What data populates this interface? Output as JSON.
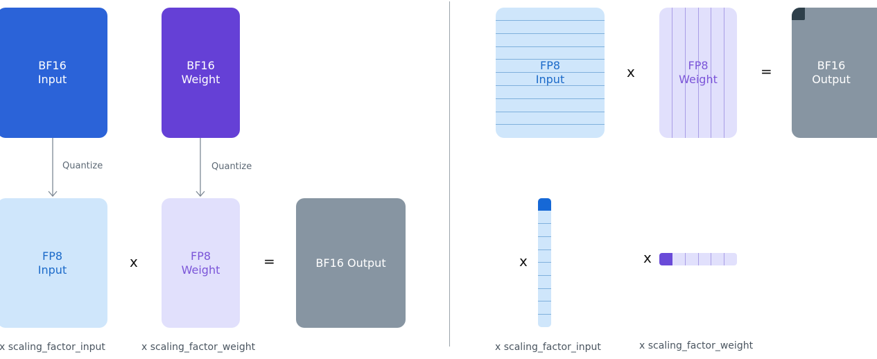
{
  "left": {
    "bf16_input": "BF16\nInput",
    "bf16_weight": "BF16\nWeight",
    "quantize_input": "Quantize",
    "quantize_weight": "Quantize",
    "fp8_input": "FP8\nInput",
    "fp8_weight": "FP8\nWeight",
    "bf16_output": "BF16 Output",
    "op_multiply": "x",
    "op_equals": "=",
    "caption_input": "x scaling_factor_input",
    "caption_weight": "x scaling_factor_weight"
  },
  "right": {
    "fp8_input": "FP8\nInput",
    "fp8_weight": "FP8\nWeight",
    "bf16_output": "BF16\nOutput",
    "op_multiply": "x",
    "op_equals": "=",
    "op_multiply_input_scale": "x",
    "op_multiply_weight_scale": "x",
    "caption_input": "x scaling_factor_input",
    "caption_weight": "x scaling_factor_weight"
  },
  "colors": {
    "bf16_input": "#2b63d8",
    "bf16_weight": "#6540d6",
    "fp8_input": "#cfe6fb",
    "fp8_weight": "#e1e0fc",
    "bf16_output": "#8795a2",
    "scale_input_cap": "#1668d6",
    "scale_weight_cap": "#6a4bd8",
    "output_corner": "#2e3f4a"
  }
}
